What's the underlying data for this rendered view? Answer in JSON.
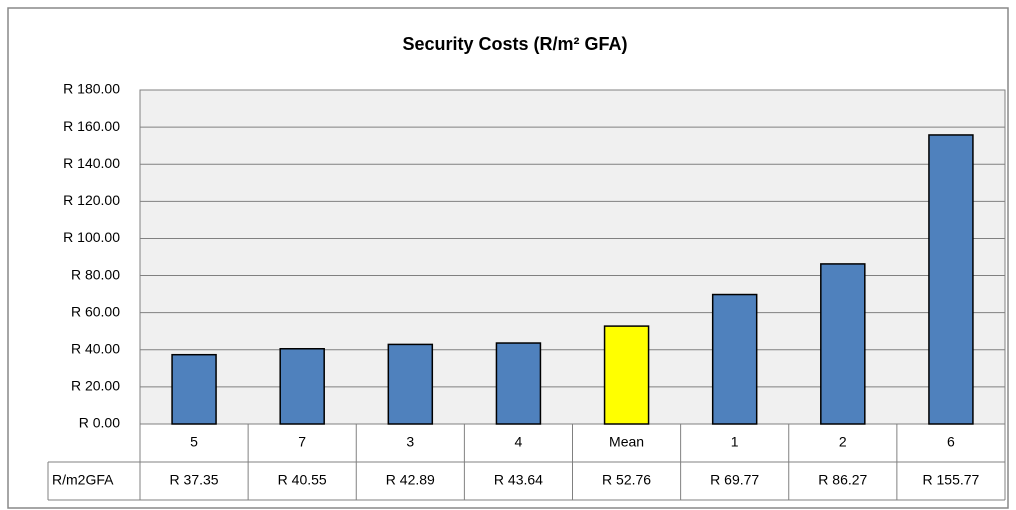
{
  "chart_data": {
    "type": "bar",
    "title": "Security Costs (R/m² GFA)",
    "categories": [
      "5",
      "7",
      "3",
      "4",
      "Mean",
      "1",
      "2",
      "6"
    ],
    "series": [
      {
        "name": "R/m2GFA",
        "colors": [
          "#4f81bd",
          "#4f81bd",
          "#4f81bd",
          "#4f81bd",
          "#ffff00",
          "#4f81bd",
          "#4f81bd",
          "#4f81bd"
        ],
        "values": [
          37.35,
          40.55,
          42.89,
          43.64,
          52.76,
          69.77,
          86.27,
          155.77
        ],
        "value_labels": [
          "R 37.35",
          "R 40.55",
          "R 42.89",
          "R 43.64",
          "R 52.76",
          "R 69.77",
          "R 86.27",
          "R 155.77"
        ]
      }
    ],
    "ylim": [
      0,
      180
    ],
    "yticks": [
      {
        "value": 0,
        "label": "R 0.00"
      },
      {
        "value": 20,
        "label": "R 20.00"
      },
      {
        "value": 40,
        "label": "R 40.00"
      },
      {
        "value": 60,
        "label": "R 60.00"
      },
      {
        "value": 80,
        "label": "R 80.00"
      },
      {
        "value": 100,
        "label": "R 100.00"
      },
      {
        "value": 120,
        "label": "R 120.00"
      },
      {
        "value": 140,
        "label": "R 140.00"
      },
      {
        "value": 160,
        "label": "R 160.00"
      },
      {
        "value": 180,
        "label": "R 180.00"
      }
    ],
    "grid": true
  }
}
